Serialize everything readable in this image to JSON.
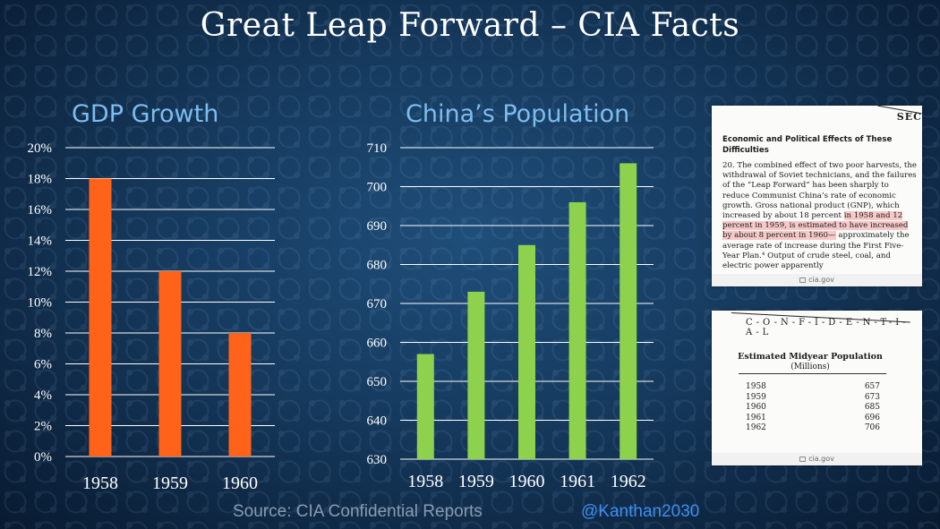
{
  "title": "Great Leap Forward – CIA Facts",
  "colors": {
    "gdp_bar": "#ff6319",
    "pop_bar": "#8ed14d",
    "chart_title": "#7dbcf0",
    "handle": "#3f8ef0"
  },
  "chart_data": [
    {
      "type": "bar",
      "title": "GDP Growth",
      "categories": [
        "1958",
        "1959",
        "1960"
      ],
      "values": [
        18,
        12,
        8
      ],
      "value_unit": "%",
      "ylim": [
        0,
        20
      ],
      "yticks": [
        "0%",
        "2%",
        "4%",
        "6%",
        "8%",
        "10%",
        "12%",
        "14%",
        "16%",
        "18%",
        "20%"
      ],
      "grid": true
    },
    {
      "type": "bar",
      "title": "China’s Population",
      "categories": [
        "1958",
        "1959",
        "1960",
        "1961",
        "1962"
      ],
      "values": [
        657,
        673,
        685,
        696,
        706
      ],
      "ylim": [
        630,
        710
      ],
      "yticks": [
        "630",
        "640",
        "650",
        "660",
        "670",
        "680",
        "690",
        "700",
        "710"
      ],
      "grid": true
    }
  ],
  "doc1": {
    "marking": "SECI",
    "heading": "Economic and Political Effects of These Difficulties",
    "para_before": "20. The combined effect of two poor harvests, the withdrawal of Soviet technicians, and the failures of the “Leap Forward” has been sharply to reduce Communist China’s rate of economic growth. Gross national product (GNP), which increased by about 18 percent",
    "para_highlight": "in 1958 and 12 percent in 1959, is estimated to have increased by about 8 percent in 1960—",
    "para_after": "approximately the average rate of increase during the First Five-Year Plan.⁴ Output of crude steel, coal, and electric power apparently",
    "caption": "cia.gov"
  },
  "doc2": {
    "marking": "C-O-N-F-I-D-E-N-T-I-A-L",
    "table_title": "Estimated Midyear Population",
    "table_subtitle": "(Millions)",
    "rows": [
      {
        "year": "1958",
        "value": "657"
      },
      {
        "year": "1959",
        "value": "673"
      },
      {
        "year": "1960",
        "value": "685"
      },
      {
        "year": "1961",
        "value": "696"
      },
      {
        "year": "1962",
        "value": "706"
      }
    ],
    "caption": "cia.gov"
  },
  "footer": {
    "source": "Source: CIA Confidential Reports",
    "handle": "@Kanthan2030"
  }
}
